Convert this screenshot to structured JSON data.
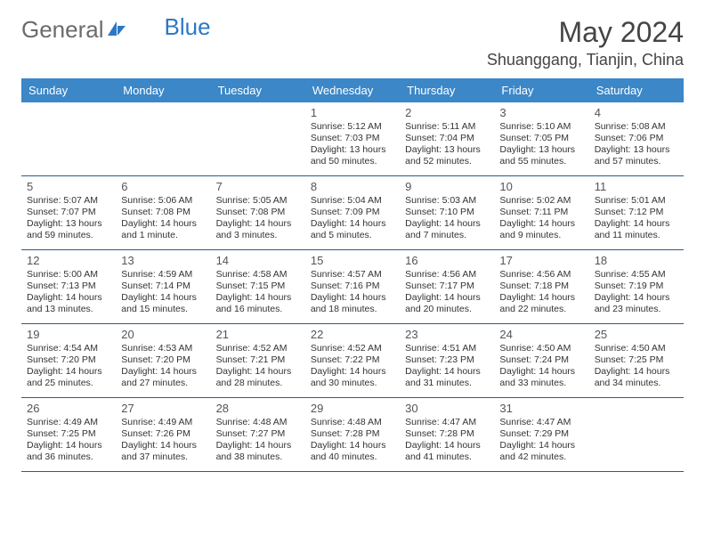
{
  "brand": {
    "part1": "General",
    "part2": "Blue"
  },
  "title": "May 2024",
  "location": "Shuanggang, Tianjin, China",
  "colors": {
    "header_bg": "#3b87c8",
    "header_text": "#ffffff",
    "rule": "#2d5a8a",
    "logo_gray": "#6b6b6b",
    "logo_blue": "#2d78c6",
    "text": "#333333"
  },
  "day_names": [
    "Sunday",
    "Monday",
    "Tuesday",
    "Wednesday",
    "Thursday",
    "Friday",
    "Saturday"
  ],
  "weeks": [
    [
      null,
      null,
      null,
      {
        "n": "1",
        "sr": "5:12 AM",
        "ss": "7:03 PM",
        "dl": "13 hours and 50 minutes."
      },
      {
        "n": "2",
        "sr": "5:11 AM",
        "ss": "7:04 PM",
        "dl": "13 hours and 52 minutes."
      },
      {
        "n": "3",
        "sr": "5:10 AM",
        "ss": "7:05 PM",
        "dl": "13 hours and 55 minutes."
      },
      {
        "n": "4",
        "sr": "5:08 AM",
        "ss": "7:06 PM",
        "dl": "13 hours and 57 minutes."
      }
    ],
    [
      {
        "n": "5",
        "sr": "5:07 AM",
        "ss": "7:07 PM",
        "dl": "13 hours and 59 minutes."
      },
      {
        "n": "6",
        "sr": "5:06 AM",
        "ss": "7:08 PM",
        "dl": "14 hours and 1 minute."
      },
      {
        "n": "7",
        "sr": "5:05 AM",
        "ss": "7:08 PM",
        "dl": "14 hours and 3 minutes."
      },
      {
        "n": "8",
        "sr": "5:04 AM",
        "ss": "7:09 PM",
        "dl": "14 hours and 5 minutes."
      },
      {
        "n": "9",
        "sr": "5:03 AM",
        "ss": "7:10 PM",
        "dl": "14 hours and 7 minutes."
      },
      {
        "n": "10",
        "sr": "5:02 AM",
        "ss": "7:11 PM",
        "dl": "14 hours and 9 minutes."
      },
      {
        "n": "11",
        "sr": "5:01 AM",
        "ss": "7:12 PM",
        "dl": "14 hours and 11 minutes."
      }
    ],
    [
      {
        "n": "12",
        "sr": "5:00 AM",
        "ss": "7:13 PM",
        "dl": "14 hours and 13 minutes."
      },
      {
        "n": "13",
        "sr": "4:59 AM",
        "ss": "7:14 PM",
        "dl": "14 hours and 15 minutes."
      },
      {
        "n": "14",
        "sr": "4:58 AM",
        "ss": "7:15 PM",
        "dl": "14 hours and 16 minutes."
      },
      {
        "n": "15",
        "sr": "4:57 AM",
        "ss": "7:16 PM",
        "dl": "14 hours and 18 minutes."
      },
      {
        "n": "16",
        "sr": "4:56 AM",
        "ss": "7:17 PM",
        "dl": "14 hours and 20 minutes."
      },
      {
        "n": "17",
        "sr": "4:56 AM",
        "ss": "7:18 PM",
        "dl": "14 hours and 22 minutes."
      },
      {
        "n": "18",
        "sr": "4:55 AM",
        "ss": "7:19 PM",
        "dl": "14 hours and 23 minutes."
      }
    ],
    [
      {
        "n": "19",
        "sr": "4:54 AM",
        "ss": "7:20 PM",
        "dl": "14 hours and 25 minutes."
      },
      {
        "n": "20",
        "sr": "4:53 AM",
        "ss": "7:20 PM",
        "dl": "14 hours and 27 minutes."
      },
      {
        "n": "21",
        "sr": "4:52 AM",
        "ss": "7:21 PM",
        "dl": "14 hours and 28 minutes."
      },
      {
        "n": "22",
        "sr": "4:52 AM",
        "ss": "7:22 PM",
        "dl": "14 hours and 30 minutes."
      },
      {
        "n": "23",
        "sr": "4:51 AM",
        "ss": "7:23 PM",
        "dl": "14 hours and 31 minutes."
      },
      {
        "n": "24",
        "sr": "4:50 AM",
        "ss": "7:24 PM",
        "dl": "14 hours and 33 minutes."
      },
      {
        "n": "25",
        "sr": "4:50 AM",
        "ss": "7:25 PM",
        "dl": "14 hours and 34 minutes."
      }
    ],
    [
      {
        "n": "26",
        "sr": "4:49 AM",
        "ss": "7:25 PM",
        "dl": "14 hours and 36 minutes."
      },
      {
        "n": "27",
        "sr": "4:49 AM",
        "ss": "7:26 PM",
        "dl": "14 hours and 37 minutes."
      },
      {
        "n": "28",
        "sr": "4:48 AM",
        "ss": "7:27 PM",
        "dl": "14 hours and 38 minutes."
      },
      {
        "n": "29",
        "sr": "4:48 AM",
        "ss": "7:28 PM",
        "dl": "14 hours and 40 minutes."
      },
      {
        "n": "30",
        "sr": "4:47 AM",
        "ss": "7:28 PM",
        "dl": "14 hours and 41 minutes."
      },
      {
        "n": "31",
        "sr": "4:47 AM",
        "ss": "7:29 PM",
        "dl": "14 hours and 42 minutes."
      },
      null
    ]
  ],
  "labels": {
    "sunrise": "Sunrise: ",
    "sunset": "Sunset: ",
    "daylight": "Daylight: "
  }
}
